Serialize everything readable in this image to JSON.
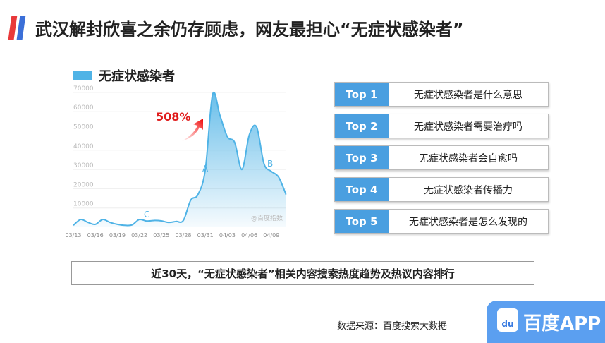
{
  "header": {
    "title": "武汉解封欣喜之余仍存顾虑，网友最担心“无症状感染者”"
  },
  "chart_data": {
    "type": "area",
    "legend": "无症状感染者",
    "categories": [
      "03/13",
      "03/14",
      "03/15",
      "03/16",
      "03/17",
      "03/18",
      "03/19",
      "03/20",
      "03/21",
      "03/22",
      "03/23",
      "03/24",
      "03/25",
      "03/26",
      "03/27",
      "03/28",
      "03/29",
      "03/30",
      "03/31",
      "04/01",
      "04/02",
      "04/03",
      "04/04",
      "04/05",
      "04/06",
      "04/07",
      "04/08",
      "04/09",
      "04/10",
      "04/11"
    ],
    "values": [
      1000,
      4000,
      2500,
      1500,
      4000,
      2500,
      1500,
      1000,
      1200,
      4000,
      3200,
      3500,
      3300,
      2500,
      3000,
      3500,
      14000,
      17000,
      30000,
      69000,
      58000,
      47000,
      44000,
      30000,
      48000,
      52000,
      33000,
      29000,
      26000,
      17000
    ],
    "x_tick_labels": [
      "03/13",
      "03/16",
      "03/19",
      "03/22",
      "03/25",
      "03/28",
      "03/31",
      "04/03",
      "04/06",
      "04/09"
    ],
    "y_ticks": [
      10000,
      20000,
      30000,
      40000,
      50000,
      60000,
      70000
    ],
    "ylim": [
      0,
      70000
    ],
    "grid": true,
    "color": "#4fb3e6",
    "annotations": {
      "growth": "508%",
      "a": "A",
      "b": "B",
      "c": "C",
      "watermark": "@百度指数"
    }
  },
  "top_list": [
    {
      "rank": "Top 1",
      "text": "无症状感染者是什么意思"
    },
    {
      "rank": "Top 2",
      "text": "无症状感染者需要治疗吗"
    },
    {
      "rank": "Top 3",
      "text": "无症状感染者会自愈吗"
    },
    {
      "rank": "Top 4",
      "text": "无症状感染者传播力"
    },
    {
      "rank": "Top 5",
      "text": "无症状感染者是怎么发现的"
    }
  ],
  "caption": "近30天，“无症状感染者”相关内容搜索热度趋势及热议内容排行",
  "source": "数据来源：百度搜索大数据",
  "brand": {
    "logo_text": "du",
    "name": "百度APP"
  }
}
